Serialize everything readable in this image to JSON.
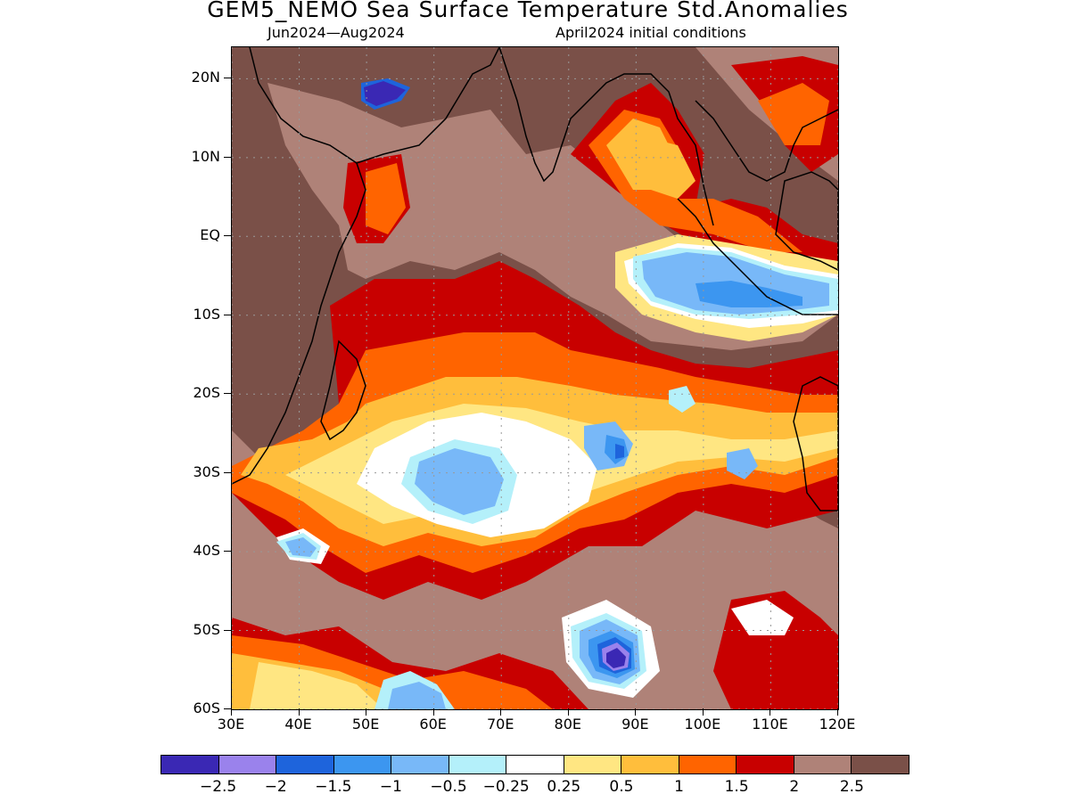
{
  "title": "GEM5_NEMO Sea Surface Temperature Std.Anomalies",
  "subtitle_left": "Jun2024—Aug2024",
  "subtitle_right": "April2024 initial conditions",
  "map": {
    "lat_range": [
      -60,
      24
    ],
    "lon_range": [
      30,
      120
    ],
    "grid": true,
    "lat_labels": [
      "20N",
      "10N",
      "EQ",
      "10S",
      "20S",
      "30S",
      "40S",
      "50S",
      "60S"
    ],
    "lat_values": [
      20,
      10,
      0,
      -10,
      -20,
      -30,
      -40,
      -50,
      -60
    ],
    "lon_labels": [
      "30E",
      "40E",
      "50E",
      "60E",
      "70E",
      "80E",
      "90E",
      "100E",
      "110E",
      "120E"
    ],
    "lon_values": [
      30,
      40,
      50,
      60,
      70,
      80,
      90,
      100,
      110,
      120
    ]
  },
  "colors": {
    "lt_-2.5": "#3a28b4",
    "-2.5_-2": "#9a82ec",
    "-2_-1.5": "#1e64dc",
    "-1.5_-1": "#3c96f0",
    "-1_-0.5": "#78b8f8",
    "-0.5_-0.25": "#b4f0fa",
    "-0.25_0.25": "#ffffff",
    "0.25_0.5": "#ffe682",
    "0.5_1": "#ffbe3c",
    "1_1.5": "#ff6400",
    "1.5_2": "#c80000",
    "2_2.5": "#af8278",
    "gt_2.5": "#7a5048"
  },
  "legend": {
    "colors": [
      "#3a28b4",
      "#9a82ec",
      "#1e64dc",
      "#3c96f0",
      "#78b8f8",
      "#b4f0fa",
      "#ffffff",
      "#ffe682",
      "#ffbe3c",
      "#ff6400",
      "#c80000",
      "#af8278",
      "#7a5048"
    ],
    "labels": [
      "−2.5",
      "−2",
      "−1.5",
      "−1",
      "−0.5",
      "−0.25",
      "0.25",
      "0.5",
      "1",
      "1.5",
      "2",
      "2.5"
    ]
  }
}
